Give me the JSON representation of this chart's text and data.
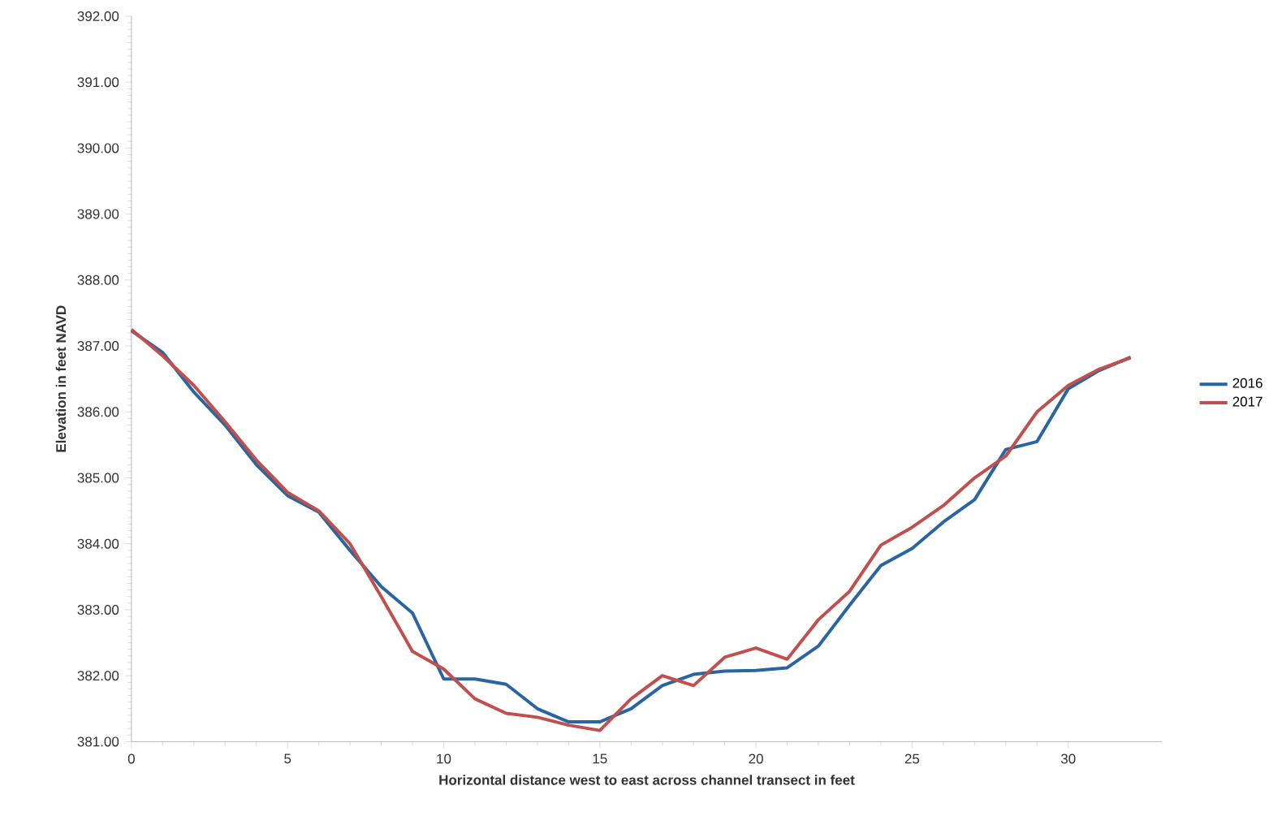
{
  "chart_data": {
    "type": "line",
    "xlabel": "Horizontal distance west to east across channel transect in feet",
    "ylabel": "Elevation in feet NAVD",
    "x": [
      0,
      1,
      2,
      3,
      4,
      5,
      6,
      7,
      8,
      9,
      10,
      11,
      12,
      13,
      14,
      15,
      16,
      17,
      18,
      19,
      20,
      21,
      22,
      23,
      24,
      25,
      26,
      27,
      28,
      29,
      30,
      31,
      32
    ],
    "series": [
      {
        "name": "2016",
        "color": "#2b65a0",
        "values": [
          387.23,
          386.9,
          386.3,
          385.8,
          385.2,
          384.73,
          384.48,
          383.9,
          383.35,
          382.95,
          381.95,
          381.95,
          381.87,
          381.5,
          381.3,
          381.3,
          381.5,
          381.85,
          382.02,
          382.07,
          382.08,
          382.12,
          382.45,
          383.07,
          383.67,
          383.93,
          384.33,
          384.67,
          385.43,
          385.55,
          386.35,
          386.63,
          386.83
        ]
      },
      {
        "name": "2017",
        "color": "#c0504d",
        "values": [
          387.25,
          386.85,
          386.4,
          385.85,
          385.27,
          384.78,
          384.5,
          384.0,
          383.2,
          382.37,
          382.1,
          381.65,
          381.43,
          381.37,
          381.25,
          381.17,
          381.65,
          382.0,
          381.85,
          382.28,
          382.42,
          382.25,
          382.85,
          383.28,
          383.98,
          384.25,
          384.58,
          385.0,
          385.33,
          386.0,
          386.4,
          386.65,
          386.82
        ]
      }
    ],
    "xlim": [
      0,
      33
    ],
    "xticks": [
      0,
      5,
      10,
      15,
      20,
      25,
      30
    ],
    "ylim": [
      381,
      392
    ],
    "yticks": [
      {
        "value": 381,
        "label": "381.00"
      },
      {
        "value": 382,
        "label": "382.00"
      },
      {
        "value": 383,
        "label": "383.00"
      },
      {
        "value": 384,
        "label": "384.00"
      },
      {
        "value": 385,
        "label": "385.00"
      },
      {
        "value": 386,
        "label": "386.00"
      },
      {
        "value": 387,
        "label": "387.00"
      },
      {
        "value": 388,
        "label": "388.00"
      },
      {
        "value": 389,
        "label": "389.00"
      },
      {
        "value": 390,
        "label": "390.00"
      },
      {
        "value": 391,
        "label": "391.00"
      },
      {
        "value": 392,
        "label": "392.00"
      }
    ],
    "grid": false,
    "legend": "right",
    "marker": "none",
    "line_style": "solid"
  }
}
